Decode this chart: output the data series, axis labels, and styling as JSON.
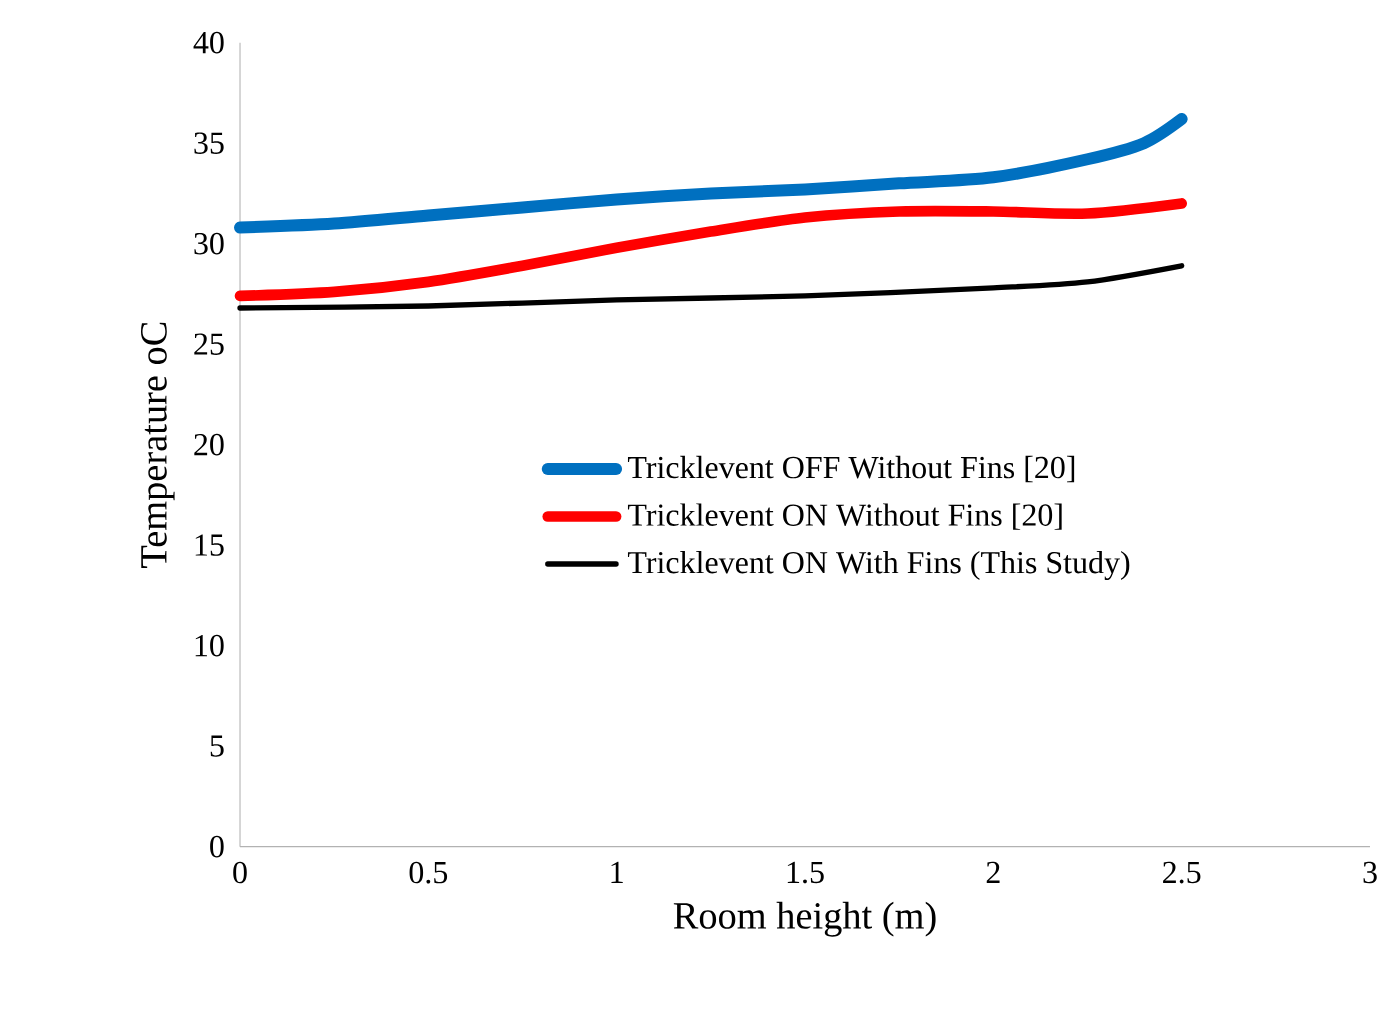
{
  "chart_data": {
    "type": "line",
    "xlabel": "Room height (m)",
    "ylabel": "Temperature oC",
    "xlim": [
      0,
      3
    ],
    "xticks": [
      0,
      0.5,
      1,
      1.5,
      2,
      2.5,
      3
    ],
    "ylim": [
      0,
      40
    ],
    "yticks": [
      0,
      5,
      10,
      15,
      20,
      25,
      30,
      35,
      40
    ],
    "grid": false,
    "legend": "center",
    "marker": "none",
    "line_style": "solid",
    "series": [
      {
        "name": "Tricklevent OFF Without Fins [20]",
        "color": "#0070c0",
        "x": [
          0,
          0.25,
          0.5,
          0.75,
          1,
          1.25,
          1.5,
          1.75,
          2,
          2.25,
          2.4,
          2.5
        ],
        "values": [
          30.8,
          31.0,
          31.4,
          31.8,
          32.2,
          32.5,
          32.7,
          33.0,
          33.3,
          34.2,
          35.0,
          36.2
        ]
      },
      {
        "name": "Tricklevent ON Without Fins [20]",
        "color": "#ff0000",
        "x": [
          0,
          0.25,
          0.5,
          0.75,
          1,
          1.25,
          1.5,
          1.75,
          2,
          2.25,
          2.5
        ],
        "values": [
          27.4,
          27.6,
          28.1,
          28.9,
          29.8,
          30.6,
          31.3,
          31.6,
          31.6,
          31.5,
          32.0
        ]
      },
      {
        "name": "Tricklevent ON With Fins (This Study)",
        "color": "#000000",
        "x": [
          0,
          0.5,
          1,
          1.5,
          2,
          2.25,
          2.5
        ],
        "values": [
          26.8,
          26.9,
          27.2,
          27.4,
          27.8,
          28.1,
          28.9
        ]
      }
    ]
  }
}
